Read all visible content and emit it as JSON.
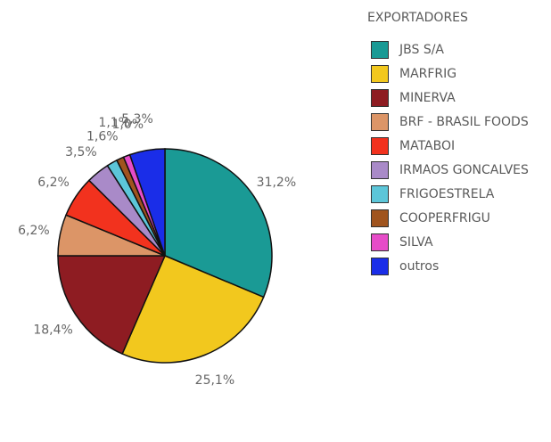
{
  "chart_data": {
    "type": "pie",
    "legend_title": "EXPORTADORES",
    "legend_position": "right",
    "categories": [
      "JBS S/A",
      "MARFRIG",
      "MINERVA",
      "BRF - BRASIL FOODS",
      "MATABOI",
      "IRMAOS GONCALVES",
      "FRIGOESTRELA",
      "COOPERFRIGU",
      "SILVA",
      "outros"
    ],
    "values": [
      31.2,
      25.1,
      18.4,
      6.2,
      6.2,
      3.5,
      1.6,
      1.1,
      1.0,
      5.3
    ],
    "labels": [
      "31,2%",
      "25,1%",
      "18,4%",
      "6,2%",
      "6,2%",
      "3,5%",
      "1,6%",
      "1,1%",
      "1,0%",
      "5,3%"
    ],
    "colors": [
      "#1a9a95",
      "#f2c81e",
      "#8e1c22",
      "#dc9567",
      "#f2321e",
      "#a98ac8",
      "#5cc6d9",
      "#a0541e",
      "#e64cc8",
      "#1a2de8"
    ]
  }
}
